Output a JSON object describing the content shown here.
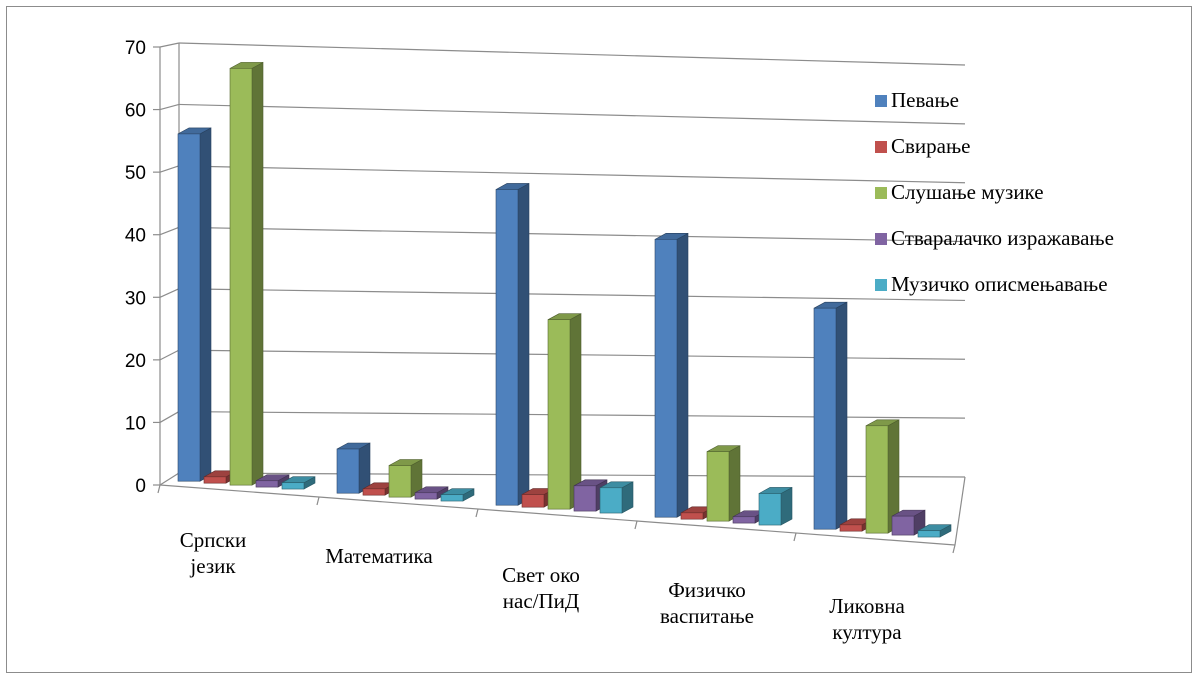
{
  "chart_data": {
    "type": "bar",
    "categories": [
      [
        "Српски",
        "језик"
      ],
      [
        "Математика"
      ],
      [
        "Свет око",
        "нас/ПиД"
      ],
      [
        "Физичко",
        "васпитање"
      ],
      [
        "Ликовна",
        "култура"
      ]
    ],
    "series": [
      {
        "name": "Певање",
        "color": "#4f81bd",
        "values": [
          55,
          7,
          50,
          44,
          35
        ]
      },
      {
        "name": "Свирање",
        "color": "#c0504d",
        "values": [
          1,
          1,
          2,
          1,
          1
        ]
      },
      {
        "name": "Слушање музике",
        "color": "#9bbb59",
        "values": [
          66,
          5,
          30,
          11,
          17
        ]
      },
      {
        "name": "Стваралачко изражавање",
        "color": "#8064a2",
        "values": [
          1,
          1,
          4,
          1,
          3
        ]
      },
      {
        "name": "Музичко описмењавање",
        "color": "#4bacc6",
        "values": [
          1,
          1,
          4,
          5,
          1
        ]
      }
    ],
    "yticks": [
      "0",
      "10",
      "20",
      "30",
      "40",
      "50",
      "60",
      "70"
    ],
    "ylim": [
      0,
      70
    ],
    "grid": true,
    "legend": "right",
    "title": "",
    "xlabel": "",
    "ylabel": ""
  }
}
